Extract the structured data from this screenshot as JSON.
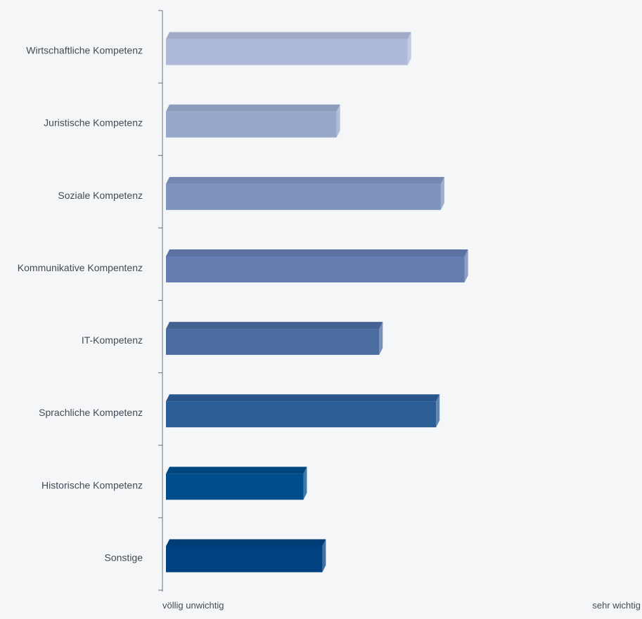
{
  "chart_data": {
    "type": "bar",
    "orientation": "horizontal",
    "categories": [
      "Wirtschaftliche Kompetenz",
      "Juristische Kompetenz",
      "Soziale Kompetenz",
      "Kommunikative Kompentenz",
      "IT-Kompetenz",
      "Sprachliche Kompetenz",
      "Historische Kompetenz",
      "Sonstige"
    ],
    "values": [
      0.51,
      0.36,
      0.58,
      0.63,
      0.45,
      0.57,
      0.29,
      0.33
    ],
    "xlim": [
      0,
      1
    ],
    "x_axis": {
      "min_label": "völlig unwichtig",
      "max_label": "sehr wichtig"
    },
    "colors": [
      "#afbad8",
      "#97a8cb",
      "#7f93bf",
      "#647caf",
      "#4a6ca0",
      "#2b5d97",
      "#004d8c",
      "#004281"
    ],
    "grid": false,
    "legend": "none"
  }
}
